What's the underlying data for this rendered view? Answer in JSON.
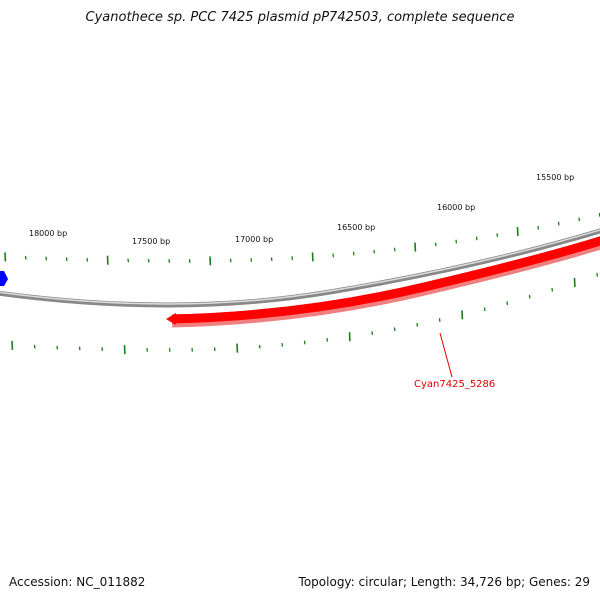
{
  "title": "Cyanothece sp. PCC 7425 plasmid pP742503, complete sequence",
  "footer": {
    "accession": "Accession: NC_011882",
    "summary": "Topology: circular; Length: 34,726 bp; Genes: 29"
  },
  "colors": {
    "backbone": "#888888",
    "gene_forward": "#ff0000",
    "gene_reverse": "#0000ff",
    "tick": "#1a7f1a",
    "gene_label": "#e00000"
  },
  "scale_ticks": [
    {
      "label": "18000 bp"
    },
    {
      "label": "17500 bp"
    },
    {
      "label": "17000 bp"
    },
    {
      "label": "16500 bp"
    },
    {
      "label": "16000 bp"
    },
    {
      "label": "15500 bp"
    }
  ],
  "genes": [
    {
      "name": "Cyan7425_5286",
      "strand": "forward"
    }
  ]
}
